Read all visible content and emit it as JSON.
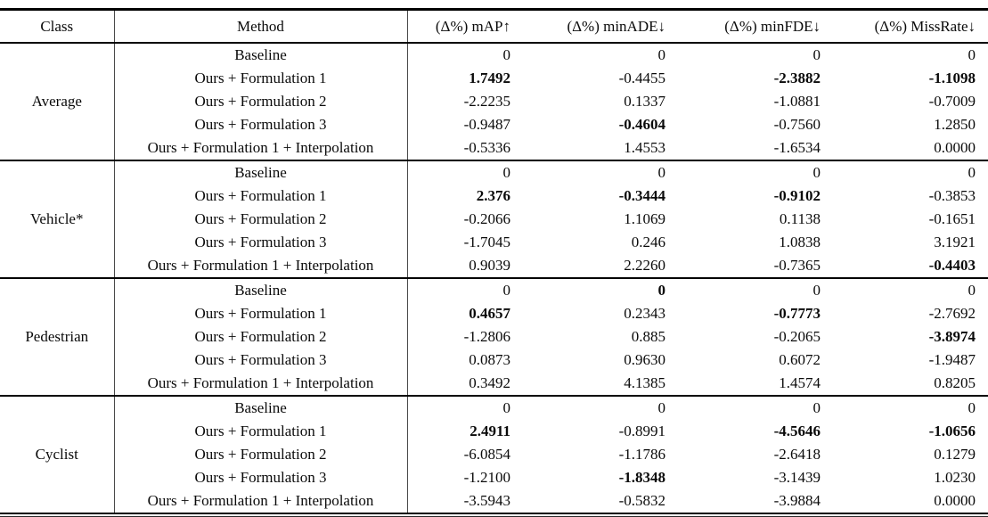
{
  "table": {
    "columns": [
      "Class",
      "Method",
      "(Δ%) mAP↑",
      "(Δ%) minADE↓",
      "(Δ%) minFDE↓",
      "(Δ%) MissRate↓"
    ],
    "groups": [
      {
        "class_label": "Average",
        "rows": [
          {
            "method": "Baseline",
            "values": [
              "0",
              "0",
              "0",
              "0"
            ]
          },
          {
            "method": "Ours + Formulation 1",
            "values": [
              "1.7492",
              "-0.4455",
              "-2.3882",
              "-1.1098"
            ]
          },
          {
            "method": "Ours + Formulation 2",
            "values": [
              "-2.2235",
              "0.1337",
              "-1.0881",
              "-0.7009"
            ]
          },
          {
            "method": "Ours + Formulation 3",
            "values": [
              "-0.9487",
              "-0.4604",
              "-0.7560",
              "1.2850"
            ]
          },
          {
            "method": "Ours + Formulation 1 + Interpolation",
            "values": [
              "-0.5336",
              "1.4553",
              "-1.6534",
              "0.0000"
            ]
          }
        ]
      },
      {
        "class_label": "Vehicle*",
        "rows": [
          {
            "method": "Baseline",
            "values": [
              "0",
              "0",
              "0",
              "0"
            ]
          },
          {
            "method": "Ours + Formulation 1",
            "values": [
              "2.376",
              "-0.3444",
              "-0.9102",
              "-0.3853"
            ]
          },
          {
            "method": "Ours + Formulation 2",
            "values": [
              "-0.2066",
              "1.1069",
              "0.1138",
              "-0.1651"
            ]
          },
          {
            "method": "Ours + Formulation 3",
            "values": [
              "-1.7045",
              "0.246",
              "1.0838",
              "3.1921"
            ]
          },
          {
            "method": "Ours + Formulation 1 + Interpolation",
            "values": [
              "0.9039",
              "2.2260",
              "-0.7365",
              "-0.4403"
            ]
          }
        ]
      },
      {
        "class_label": "Pedestrian",
        "rows": [
          {
            "method": "Baseline",
            "values": [
              "0",
              "0",
              "0",
              "0"
            ]
          },
          {
            "method": "Ours + Formulation 1",
            "values": [
              "0.4657",
              "0.2343",
              "-0.7773",
              "-2.7692"
            ]
          },
          {
            "method": "Ours + Formulation 2",
            "values": [
              "-1.2806",
              "0.885",
              "-0.2065",
              "-3.8974"
            ]
          },
          {
            "method": "Ours + Formulation 3",
            "values": [
              "0.0873",
              "0.9630",
              "0.6072",
              "-1.9487"
            ]
          },
          {
            "method": "Ours + Formulation 1 + Interpolation",
            "values": [
              "0.3492",
              "4.1385",
              "1.4574",
              "0.8205"
            ]
          }
        ]
      },
      {
        "class_label": "Cyclist",
        "rows": [
          {
            "method": "Baseline",
            "values": [
              "0",
              "0",
              "0",
              "0"
            ]
          },
          {
            "method": "Ours + Formulation 1",
            "values": [
              "2.4911",
              "-0.8991",
              "-4.5646",
              "-1.0656"
            ]
          },
          {
            "method": "Ours + Formulation 2",
            "values": [
              "-6.0854",
              "-1.1786",
              "-2.6418",
              "0.1279"
            ]
          },
          {
            "method": "Ours + Formulation 3",
            "values": [
              "-1.2100",
              "-1.8348",
              "-3.1439",
              "1.0230"
            ]
          },
          {
            "method": "Ours + Formulation 1 + Interpolation",
            "values": [
              "-3.5943",
              "-0.5832",
              "-3.9884",
              "0.0000"
            ]
          }
        ]
      }
    ],
    "bold_cells": [
      [
        0,
        1,
        0
      ],
      [
        0,
        1,
        2
      ],
      [
        0,
        1,
        3
      ],
      [
        0,
        3,
        1
      ],
      [
        1,
        1,
        0
      ],
      [
        1,
        1,
        1
      ],
      [
        1,
        1,
        2
      ],
      [
        1,
        4,
        3
      ],
      [
        2,
        0,
        1
      ],
      [
        2,
        1,
        0
      ],
      [
        2,
        1,
        2
      ],
      [
        2,
        2,
        3
      ],
      [
        3,
        1,
        0
      ],
      [
        3,
        1,
        2
      ],
      [
        3,
        1,
        3
      ],
      [
        3,
        3,
        1
      ]
    ]
  }
}
